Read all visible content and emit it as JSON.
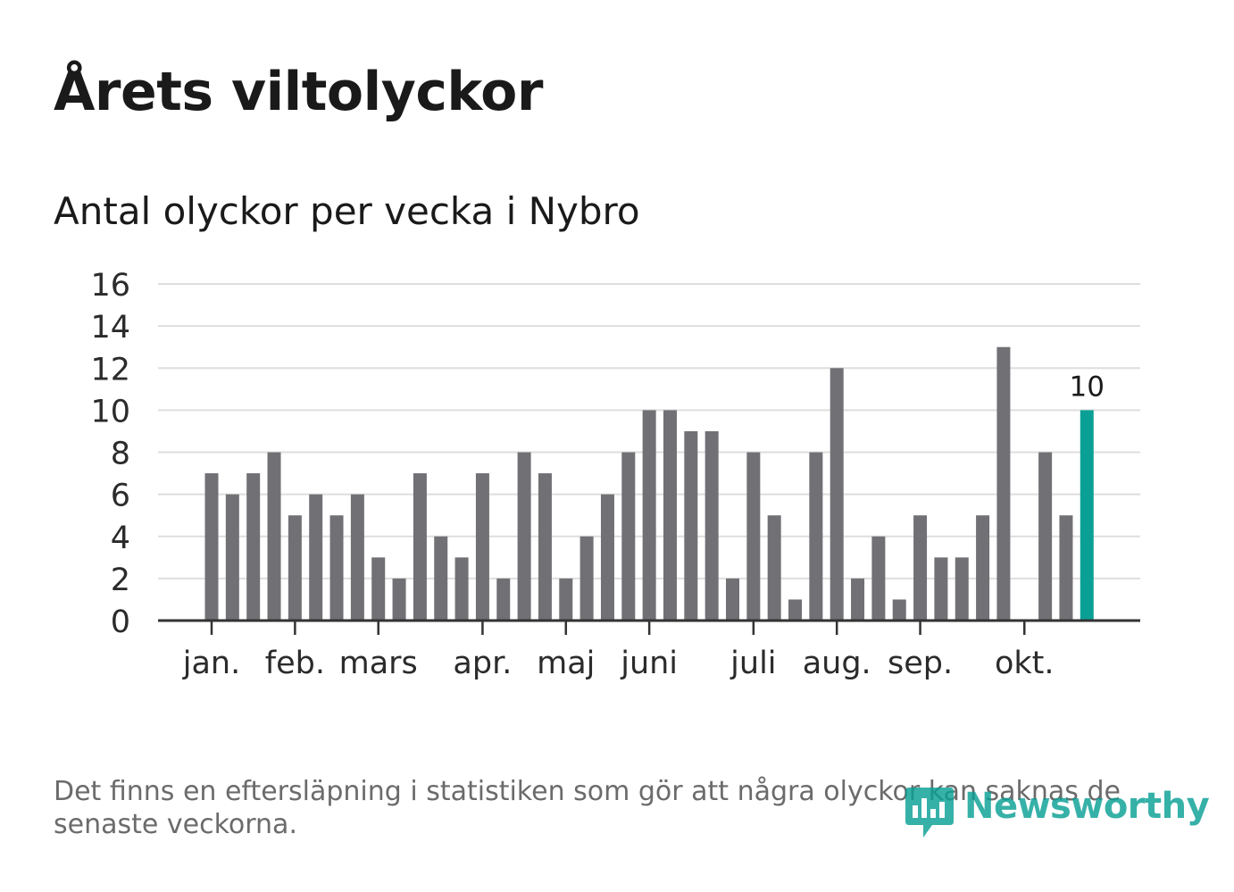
{
  "header": {
    "title": "Årets viltolyckor",
    "subtitle": "Antal olyckor per vecka i Nybro"
  },
  "footnote": "Det finns en eftersläpning i statistiken som gör att några olyckor kan saknas de senaste veckorna.",
  "brand": {
    "name": "Newsworthy",
    "color": "#0aa095"
  },
  "chart_data": {
    "type": "bar",
    "title": "Antal olyckor per vecka i Nybro",
    "xlabel": "",
    "ylabel": "",
    "ylim": [
      0,
      16
    ],
    "yticks": [
      "0",
      "2",
      "4",
      "6",
      "8",
      "10",
      "12",
      "14",
      "16"
    ],
    "grid": true,
    "bar_color": "#717075",
    "highlight_color": "#0aa095",
    "highlight_index": 42,
    "highlight_label": "10",
    "values": [
      7,
      6,
      7,
      8,
      5,
      6,
      5,
      6,
      3,
      2,
      7,
      4,
      3,
      7,
      2,
      8,
      7,
      2,
      4,
      6,
      8,
      10,
      10,
      9,
      9,
      2,
      8,
      5,
      1,
      8,
      12,
      2,
      4,
      1,
      5,
      3,
      3,
      5,
      13,
      0,
      8,
      5,
      10
    ],
    "month_ticks": [
      {
        "label": "jan.",
        "week": 0
      },
      {
        "label": "feb.",
        "week": 4
      },
      {
        "label": "mars",
        "week": 8
      },
      {
        "label": "apr.",
        "week": 13
      },
      {
        "label": "maj",
        "week": 17
      },
      {
        "label": "juni",
        "week": 21
      },
      {
        "label": "juli",
        "week": 26
      },
      {
        "label": "aug.",
        "week": 30
      },
      {
        "label": "sep.",
        "week": 34
      },
      {
        "label": "okt.",
        "week": 39
      }
    ]
  }
}
